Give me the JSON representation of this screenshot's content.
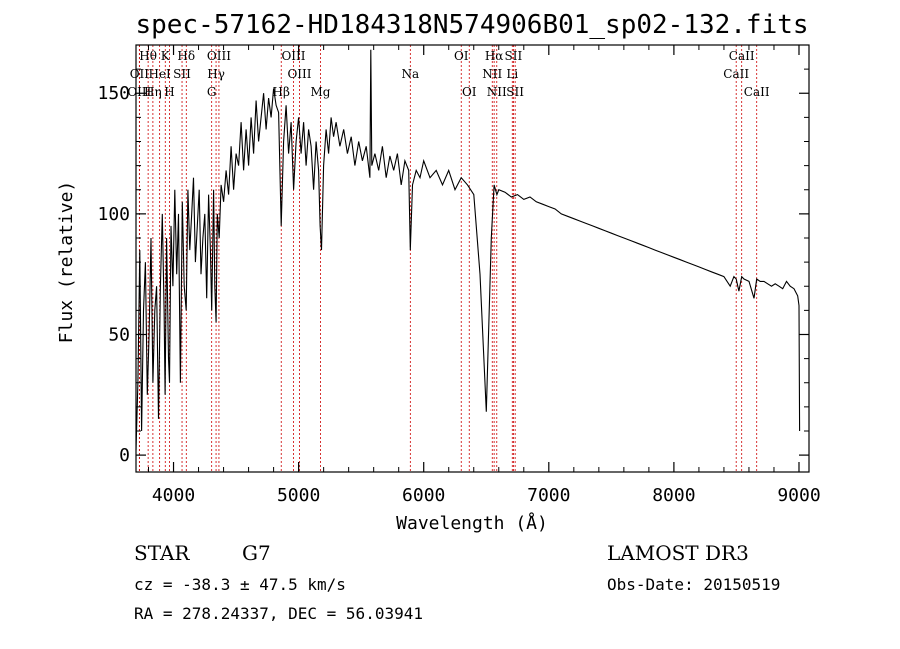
{
  "title": "spec-57162-HD184318N574906B01_sp02-132.fits",
  "chart_data": {
    "type": "line",
    "xlabel": "Wavelength (Å)",
    "ylabel": "Flux (relative)",
    "xlim": [
      3700,
      9080
    ],
    "ylim": [
      -7,
      170
    ],
    "xticks": [
      4000,
      5000,
      6000,
      7000,
      8000,
      9000
    ],
    "yticks": [
      0,
      50,
      100,
      150
    ],
    "grid": false,
    "series": [
      {
        "name": "spectrum",
        "x": [
          3700,
          3715,
          3730,
          3745,
          3760,
          3775,
          3790,
          3805,
          3820,
          3835,
          3850,
          3865,
          3880,
          3895,
          3910,
          3925,
          3933,
          3945,
          3960,
          3968,
          3980,
          3995,
          4010,
          4025,
          4040,
          4055,
          4070,
          4085,
          4101,
          4115,
          4130,
          4145,
          4160,
          4175,
          4190,
          4205,
          4220,
          4235,
          4250,
          4265,
          4280,
          4295,
          4305,
          4320,
          4330,
          4340,
          4350,
          4365,
          4380,
          4400,
          4420,
          4440,
          4460,
          4480,
          4500,
          4520,
          4540,
          4560,
          4580,
          4600,
          4620,
          4640,
          4660,
          4680,
          4700,
          4720,
          4740,
          4760,
          4780,
          4800,
          4820,
          4840,
          4861,
          4880,
          4900,
          4920,
          4940,
          4960,
          4980,
          5000,
          5020,
          5040,
          5060,
          5080,
          5100,
          5120,
          5140,
          5160,
          5172,
          5183,
          5200,
          5220,
          5240,
          5260,
          5280,
          5300,
          5330,
          5360,
          5390,
          5420,
          5450,
          5480,
          5510,
          5540,
          5570,
          5577,
          5585,
          5610,
          5640,
          5670,
          5700,
          5730,
          5760,
          5790,
          5820,
          5850,
          5880,
          5893,
          5910,
          5940,
          5970,
          6000,
          6050,
          6100,
          6150,
          6200,
          6250,
          6300,
          6350,
          6400,
          6450,
          6500,
          6540,
          6563,
          6585,
          6600,
          6650,
          6700,
          6750,
          6800,
          6850,
          6900,
          6950,
          7000,
          7050,
          7100,
          7150,
          7200,
          7250,
          7300,
          7350,
          7400,
          7450,
          7500,
          7550,
          7600,
          7650,
          7700,
          7750,
          7800,
          7850,
          7900,
          7950,
          8000,
          8050,
          8100,
          8150,
          8200,
          8250,
          8300,
          8350,
          8400,
          8450,
          8480,
          8498,
          8520,
          8542,
          8560,
          8600,
          8640,
          8662,
          8690,
          8720,
          8750,
          8780,
          8810,
          8840,
          8870,
          8900,
          8930,
          8960,
          8990,
          9000,
          9005
        ],
        "values": [
          2,
          30,
          85,
          10,
          60,
          80,
          25,
          50,
          90,
          30,
          60,
          70,
          15,
          70,
          100,
          60,
          25,
          90,
          40,
          30,
          95,
          70,
          110,
          75,
          100,
          30,
          105,
          70,
          60,
          110,
          85,
          100,
          115,
          80,
          95,
          110,
          75,
          90,
          100,
          65,
          108,
          85,
          60,
          110,
          70,
          55,
          100,
          90,
          112,
          105,
          118,
          108,
          128,
          110,
          125,
          120,
          138,
          118,
          135,
          120,
          140,
          125,
          147,
          130,
          140,
          150,
          135,
          148,
          140,
          152,
          145,
          142,
          95,
          130,
          145,
          125,
          138,
          110,
          130,
          140,
          125,
          138,
          120,
          135,
          128,
          110,
          130,
          118,
          95,
          85,
          120,
          135,
          125,
          140,
          132,
          138,
          128,
          135,
          125,
          132,
          120,
          130,
          122,
          128,
          115,
          168,
          120,
          125,
          118,
          128,
          115,
          124,
          118,
          125,
          112,
          122,
          118,
          85,
          112,
          118,
          115,
          122,
          115,
          118,
          112,
          118,
          110,
          115,
          112,
          108,
          75,
          18,
          90,
          112,
          108,
          110,
          109,
          107,
          108,
          106,
          107,
          105,
          104,
          103,
          102,
          100,
          99,
          98,
          97,
          96,
          95,
          94,
          93,
          92,
          91,
          90,
          89,
          88,
          87,
          86,
          85,
          84,
          83,
          82,
          81,
          80,
          79,
          78,
          77,
          76,
          75,
          74,
          70,
          74,
          73,
          68,
          74,
          73,
          72,
          65,
          73,
          72,
          72,
          71,
          70,
          71,
          70,
          69,
          72,
          70,
          69,
          66,
          62,
          10
        ]
      }
    ],
    "annotations": [
      {
        "label": "Hθ",
        "x": 3797,
        "row": 0
      },
      {
        "label": "OII",
        "x": 3727,
        "row": 1
      },
      {
        "label": "OIII",
        "x": 3727,
        "row": 2
      },
      {
        "label": "Hη",
        "x": 3835,
        "row": 2
      },
      {
        "label": "HeI",
        "x": 3889,
        "row": 1
      },
      {
        "label": "K",
        "x": 3934,
        "row": 0
      },
      {
        "label": "H",
        "x": 3968,
        "row": 2
      },
      {
        "label": "SII",
        "x": 4068,
        "row": 1
      },
      {
        "label": "Hδ",
        "x": 4102,
        "row": 0
      },
      {
        "label": "OIII",
        "x": 4363,
        "row": 0
      },
      {
        "label": "Hγ",
        "x": 4340,
        "row": 1
      },
      {
        "label": "G",
        "x": 4305,
        "row": 2
      },
      {
        "label": "Hβ",
        "x": 4861,
        "row": 2
      },
      {
        "label": "OIII",
        "x": 4959,
        "row": 0
      },
      {
        "label": "OIII",
        "x": 5007,
        "row": 1
      },
      {
        "label": "Mg",
        "x": 5175,
        "row": 2
      },
      {
        "label": "Na",
        "x": 5893,
        "row": 1
      },
      {
        "label": "OI",
        "x": 6300,
        "row": 0
      },
      {
        "label": "OI",
        "x": 6364,
        "row": 2
      },
      {
        "label": "Hα",
        "x": 6563,
        "row": 0
      },
      {
        "label": "NII",
        "x": 6548,
        "row": 1
      },
      {
        "label": "NII",
        "x": 6584,
        "row": 2
      },
      {
        "label": "SII",
        "x": 6717,
        "row": 0
      },
      {
        "label": "Li",
        "x": 6708,
        "row": 1
      },
      {
        "label": "SII",
        "x": 6731,
        "row": 2
      },
      {
        "label": "CaII",
        "x": 8542,
        "row": 0
      },
      {
        "label": "CaII",
        "x": 8498,
        "row": 1
      },
      {
        "label": "CaII",
        "x": 8662,
        "row": 2
      }
    ]
  },
  "info": {
    "object_type": "STAR",
    "subclass": "G7",
    "survey": "LAMOST DR3",
    "cz": "cz = -38.3 ± 47.5 km/s",
    "obs_date": "Obs-Date: 20150519",
    "coords": "RA = 278.24337, DEC =  56.03941"
  },
  "colors": {
    "spectrum": "#000000",
    "line_marker": "#cc0000",
    "axes": "#000000"
  }
}
